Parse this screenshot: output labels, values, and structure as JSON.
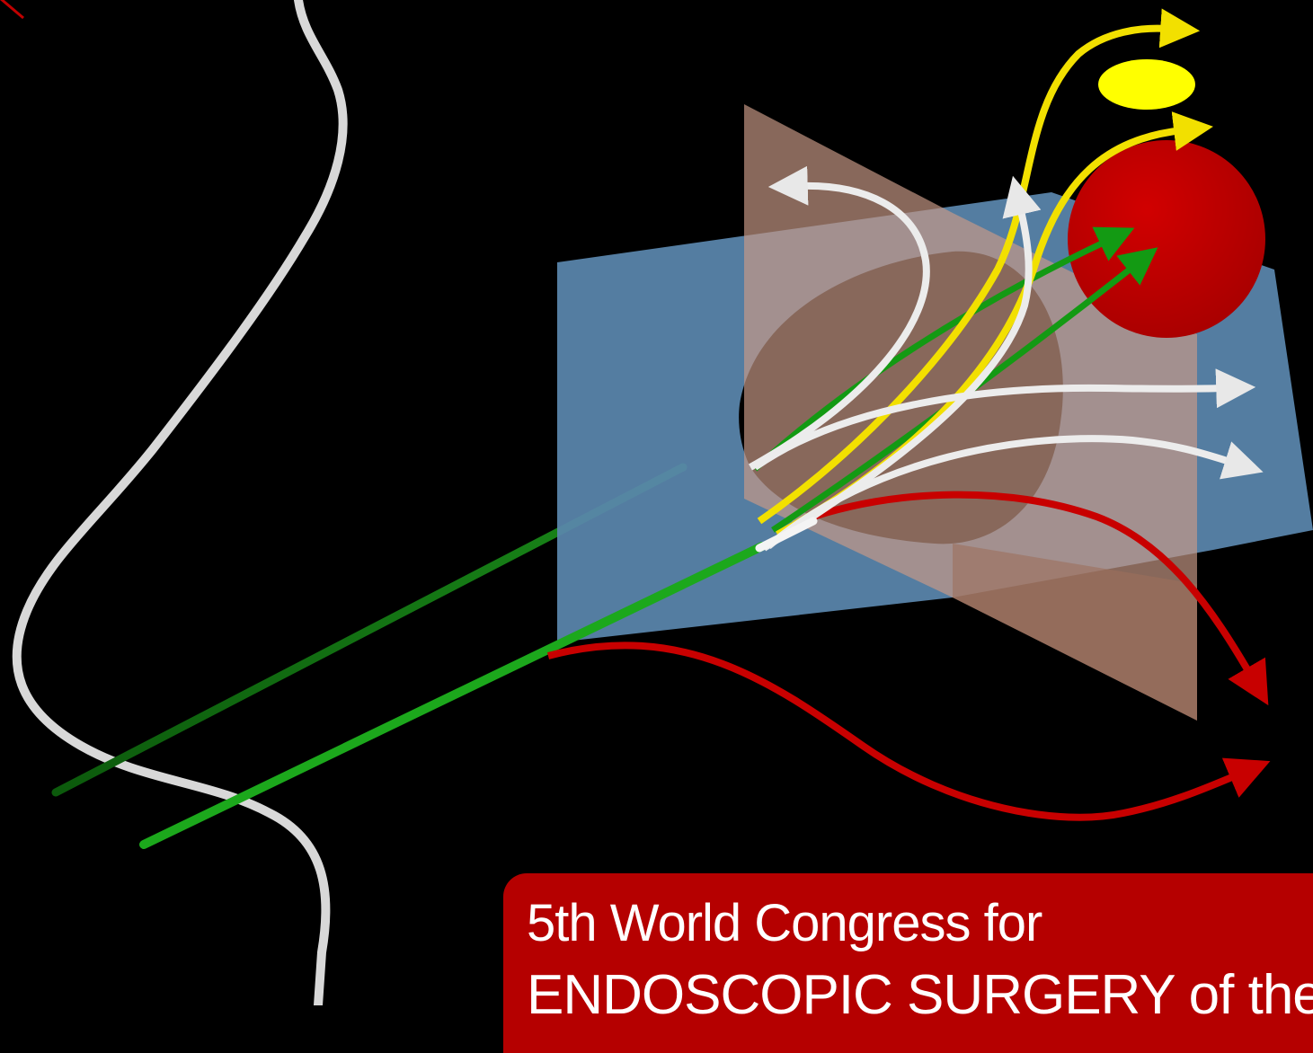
{
  "poster": {
    "banner_line1": "5th World Congress for",
    "banner_line2": "ENDOSCOPIC SURGERY of the"
  },
  "colors": {
    "background": "#000000",
    "banner": "#b50000",
    "coronal_plane": "#5a86ad",
    "sagittal_plane": "#c89a86",
    "nose_outline": "#d6d6d6",
    "endoscope": "#1fa81f",
    "white_pathway": "#ffffff",
    "yellow_pathway": "#f5e600",
    "red_pathway": "#c80000",
    "red_target": "#c40000",
    "yellow_target": "#ffff00"
  },
  "diagram": {
    "elements": [
      "nose-profile-outline",
      "coronal-plane",
      "sagittal-plane",
      "endoscope-rods",
      "corridor-arrows",
      "red-target-sphere",
      "yellow-target-ellipse"
    ]
  }
}
